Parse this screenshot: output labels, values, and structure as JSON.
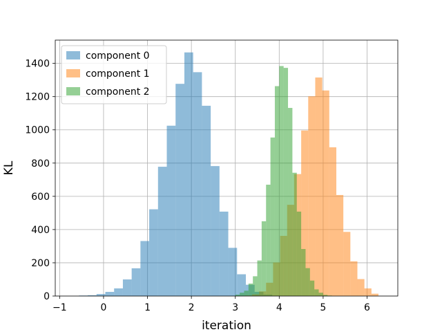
{
  "chart_data": {
    "type": "histogram",
    "xlabel": "iteration",
    "ylabel": "KL",
    "xlim": [
      -1.1,
      6.7
    ],
    "ylim": [
      0,
      1540
    ],
    "xticks": [
      -1,
      0,
      1,
      2,
      3,
      4,
      5,
      6
    ],
    "yticks": [
      0,
      200,
      400,
      600,
      800,
      1000,
      1200,
      1400
    ],
    "grid": true,
    "legend_position": "top-left",
    "series": [
      {
        "name": "component 0",
        "color": "#1f77b4",
        "alpha": 0.5,
        "bin_edges": [
          -0.56,
          -0.36,
          -0.16,
          0.04,
          0.24,
          0.44,
          0.64,
          0.84,
          1.04,
          1.24,
          1.44,
          1.64,
          1.84,
          2.04,
          2.24,
          2.44,
          2.64,
          2.84,
          3.04,
          3.24,
          3.44,
          3.64,
          3.84
        ],
        "counts": [
          3,
          5,
          12,
          25,
          46,
          100,
          167,
          331,
          522,
          778,
          1025,
          1277,
          1466,
          1347,
          1145,
          782,
          508,
          290,
          131,
          68,
          25,
          9
        ]
      },
      {
        "name": "component 1",
        "color": "#ff7f0e",
        "alpha": 0.5,
        "bin_edges": [
          3.22,
          3.38,
          3.54,
          3.7,
          3.86,
          4.02,
          4.18,
          4.34,
          4.5,
          4.66,
          4.82,
          4.98,
          5.14,
          5.3,
          5.46,
          5.62,
          5.78,
          5.94,
          6.1,
          6.26
        ],
        "counts": [
          3,
          10,
          28,
          80,
          202,
          362,
          549,
          734,
          996,
          1202,
          1315,
          1237,
          895,
          608,
          386,
          209,
          102,
          46,
          14
        ]
      },
      {
        "name": "component 2",
        "color": "#2ca02c",
        "alpha": 0.5,
        "bin_edges": [
          3.0,
          3.1,
          3.2,
          3.3,
          3.4,
          3.5,
          3.6,
          3.7,
          3.8,
          3.9,
          4.0,
          4.1,
          4.2,
          4.3,
          4.4,
          4.5,
          4.6,
          4.7,
          4.8,
          4.9,
          5.0,
          5.1,
          5.2
        ],
        "counts": [
          8,
          20,
          32,
          75,
          119,
          214,
          450,
          670,
          954,
          1263,
          1384,
          1373,
          1132,
          742,
          508,
          283,
          168,
          93,
          40,
          20,
          7,
          3
        ]
      }
    ]
  }
}
